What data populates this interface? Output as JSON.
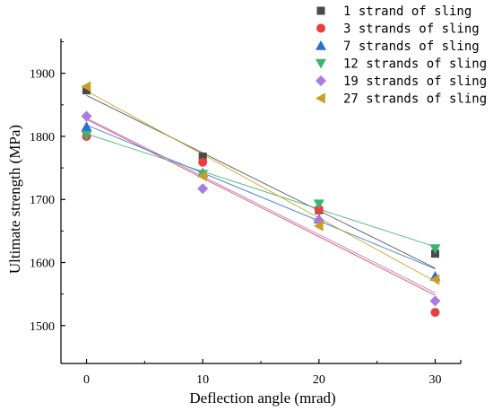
{
  "chart_data": {
    "type": "scatter",
    "xlabel": "Deflection angle (mrad)",
    "ylabel": "Ultimate strength (MPa)",
    "xlim": [
      -2.2,
      32.2
    ],
    "ylim": [
      1440,
      1955
    ],
    "xticks": [
      0,
      10,
      20,
      30
    ],
    "xtick_labels": [
      "0",
      "10",
      "20",
      "30"
    ],
    "yticks": [
      1500,
      1600,
      1700,
      1800,
      1900
    ],
    "ytick_labels": [
      "1500",
      "1600",
      "1700",
      "1800",
      "1900"
    ],
    "grid": false,
    "legend_position": "top-right",
    "trendlines": "linear fit per series",
    "series": [
      {
        "name": "1 strand of sling",
        "marker": "square",
        "color": "#4a4a4a",
        "x": [
          0,
          10,
          20,
          30
        ],
        "y": [
          1873,
          1768,
          1683,
          1614
        ],
        "fit": [
          1865,
          1591
        ]
      },
      {
        "name": "3 strands of sling",
        "marker": "circle",
        "color": "#e8403c",
        "x": [
          0,
          10,
          20,
          30
        ],
        "y": [
          1800,
          1759,
          1684,
          1521
        ],
        "fit": [
          1827,
          1548
        ]
      },
      {
        "name": "7 strands of sling",
        "marker": "triangle-up",
        "color": "#2a6fd6",
        "x": [
          0,
          10,
          20,
          30
        ],
        "y": [
          1815,
          1742,
          1669,
          1578
        ],
        "fit": [
          1818,
          1590
        ]
      },
      {
        "name": "12 strands of sling",
        "marker": "triangle-down",
        "color": "#3cb371",
        "x": [
          0,
          10,
          20,
          30
        ],
        "y": [
          1802,
          1740,
          1693,
          1622
        ],
        "fit": [
          1804,
          1625
        ]
      },
      {
        "name": "19 strands of sling",
        "marker": "diamond",
        "color": "#a97adf",
        "x": [
          0,
          10,
          20,
          30
        ],
        "y": [
          1832,
          1717,
          1667,
          1539
        ],
        "fit": [
          1829,
          1552
        ]
      },
      {
        "name": "27 strands of sling",
        "marker": "triangle-left",
        "color": "#c9a021",
        "x": [
          0,
          10,
          20,
          30
        ],
        "y": [
          1879,
          1737,
          1658,
          1573
        ],
        "fit": [
          1872,
          1570
        ]
      }
    ]
  }
}
